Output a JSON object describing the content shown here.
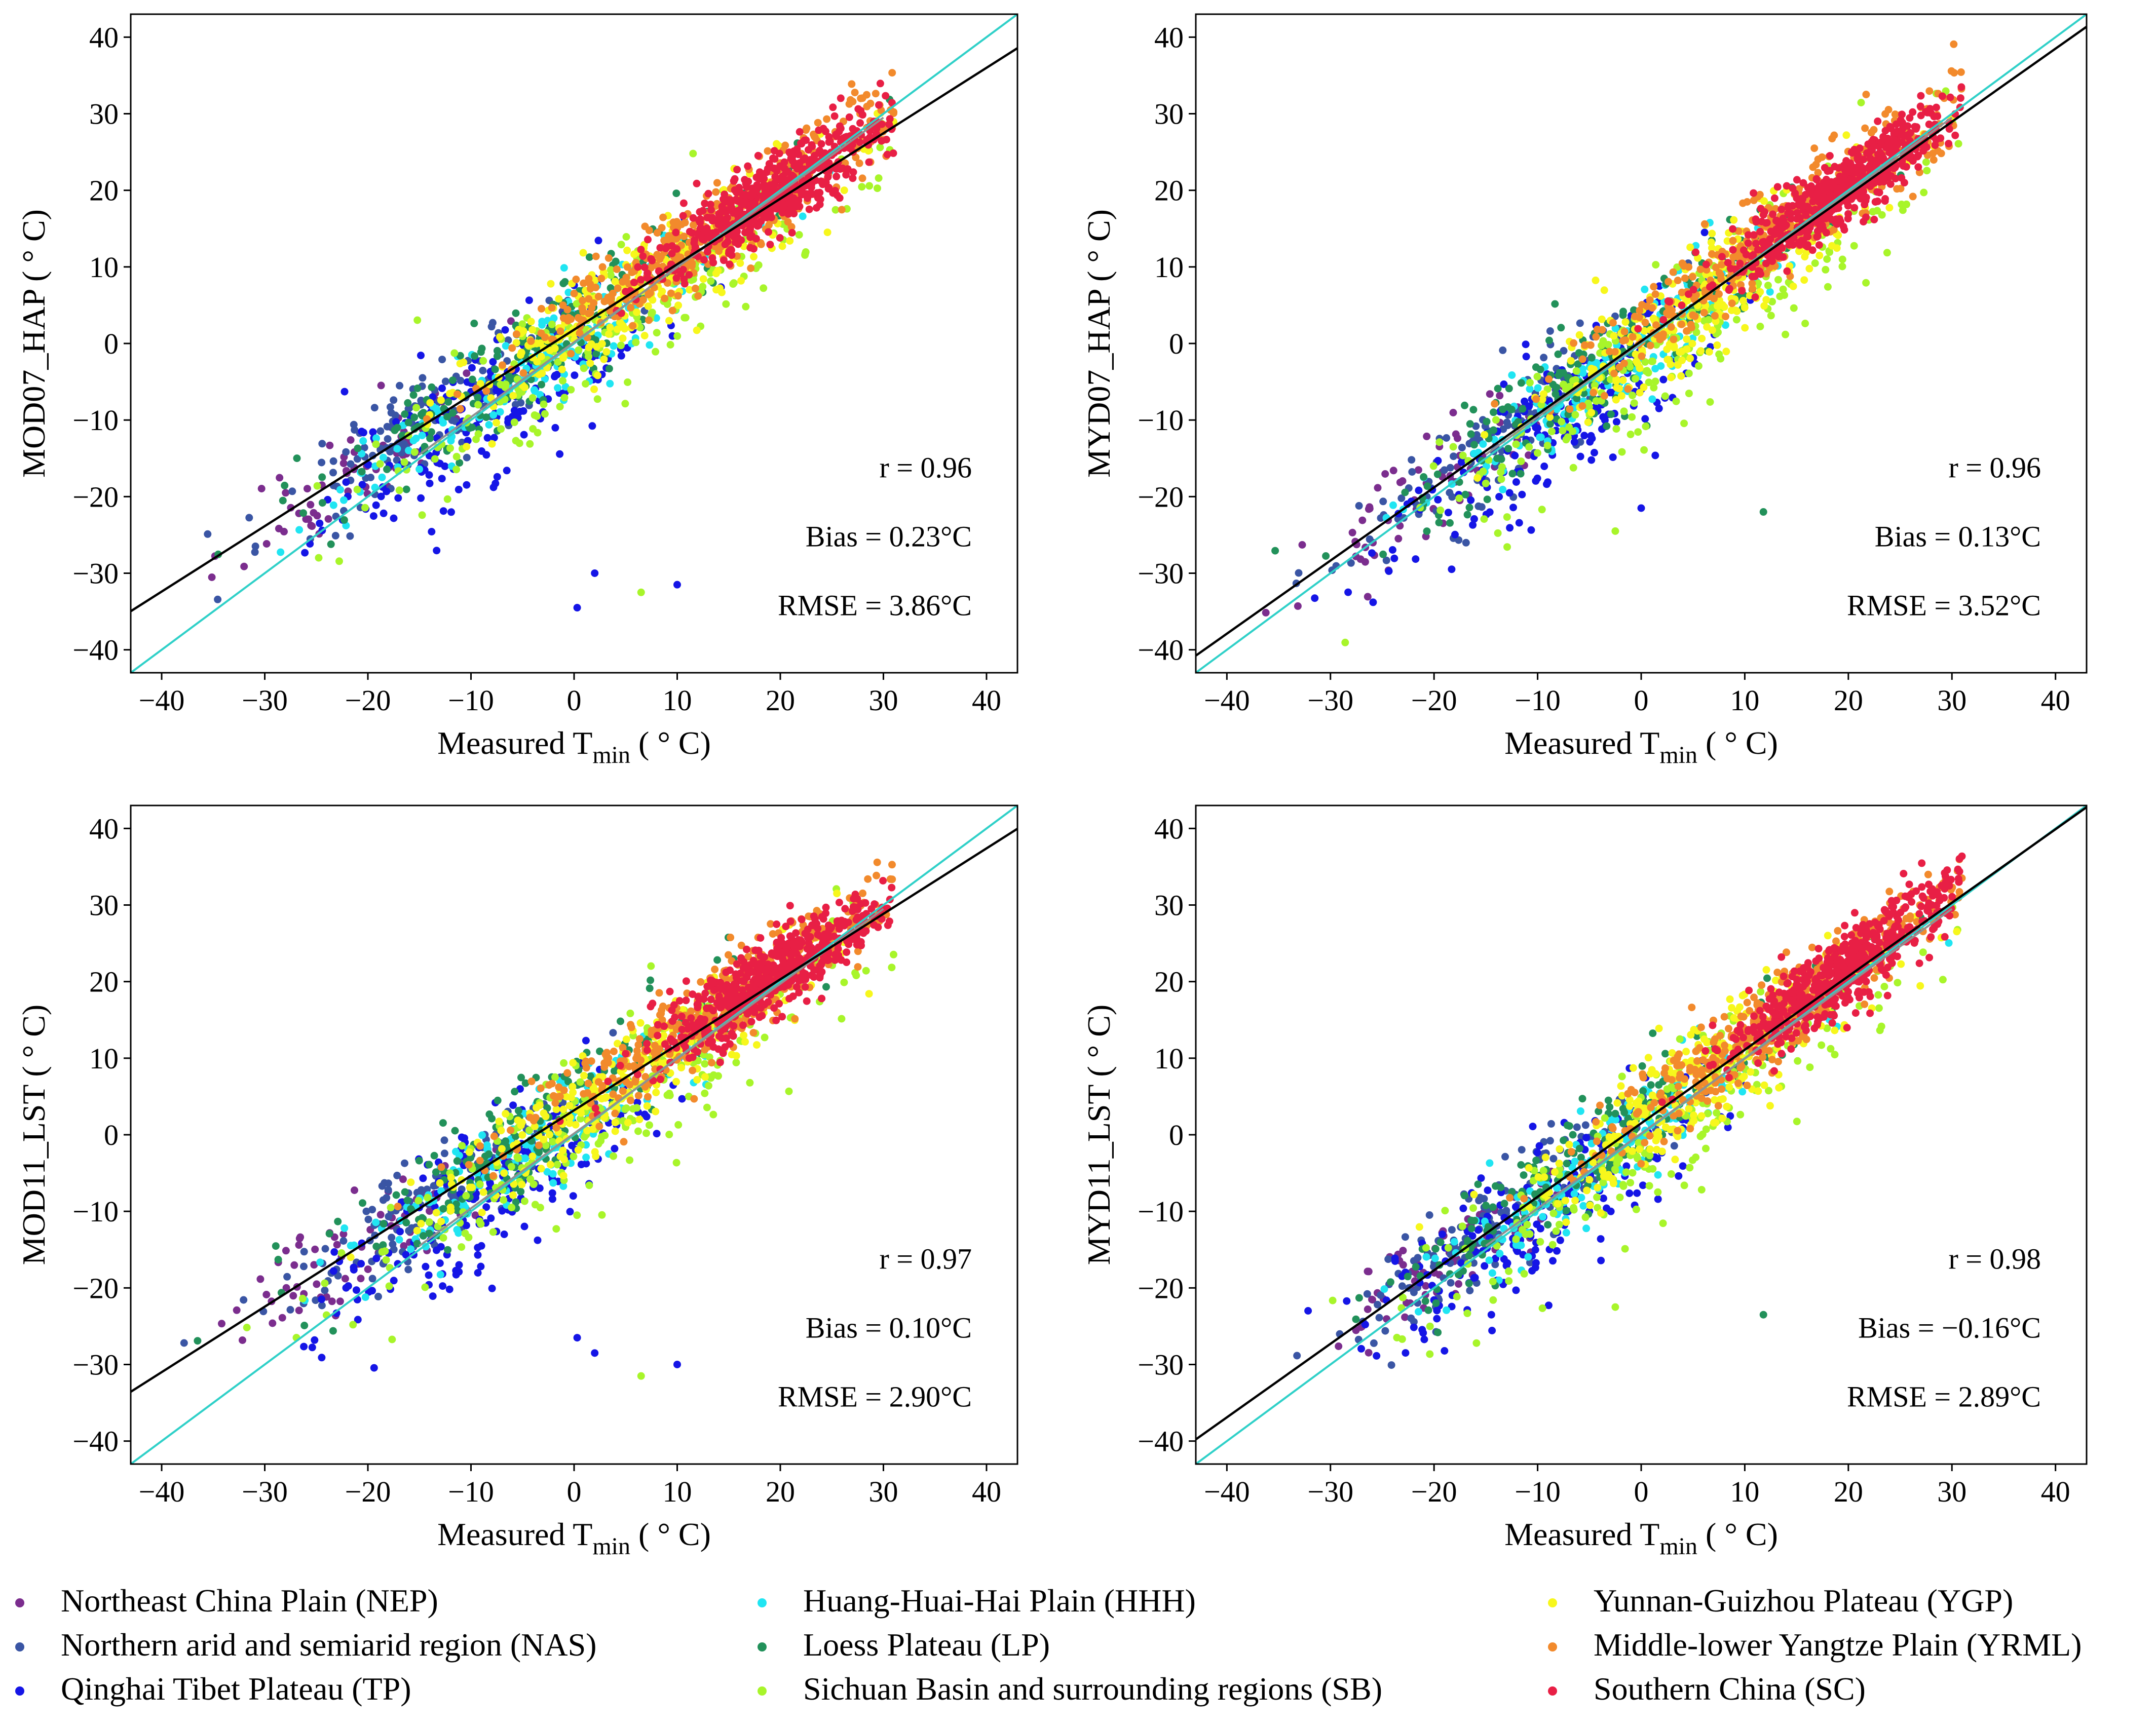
{
  "colors": {
    "NEP": "#7b2d8e",
    "NAS": "#3a55a4",
    "TP": "#1515e6",
    "HHH": "#20e5f2",
    "LP": "#22915a",
    "SB": "#a8f52a",
    "YGP": "#f7f71c",
    "YRML": "#f28a2c",
    "SC": "#e81f45",
    "one_to_one": "#2fd0c8",
    "fit": "#000000",
    "gray_line": "#909090"
  },
  "legend": [
    {
      "key": "NEP",
      "label": "Northeast China Plain (NEP)"
    },
    {
      "key": "NAS",
      "label": "Northern arid and semiarid region (NAS)"
    },
    {
      "key": "TP",
      "label": "Qinghai Tibet Plateau (TP)"
    },
    {
      "key": "HHH",
      "label": "Huang-Huai-Hai Plain (HHH)"
    },
    {
      "key": "LP",
      "label": "Loess Plateau (LP)"
    },
    {
      "key": "SB",
      "label": "Sichuan Basin and surrounding regions (SB)"
    },
    {
      "key": "YGP",
      "label": "Yunnan-Guizhou Plateau (YGP)"
    },
    {
      "key": "YRML",
      "label": "Middle-lower Yangtze Plain (YRML)"
    },
    {
      "key": "SC",
      "label": "Southern China (SC)"
    }
  ],
  "chart_data": [
    {
      "type": "scatter",
      "ylabel": "MOD07_HAP ( ° C)",
      "xlabel_main": "Measured T",
      "xlabel_sub": "min",
      "xlabel_tail": " ( ° C)",
      "xlim": [
        -43,
        43
      ],
      "ylim": [
        -43,
        43
      ],
      "xticks": [
        -40,
        -30,
        -20,
        -10,
        0,
        10,
        20,
        30,
        40
      ],
      "yticks": [
        -40,
        -30,
        -20,
        -10,
        0,
        10,
        20,
        30,
        40
      ],
      "r": "r = 0.96",
      "bias": "Bias = 0.23°C",
      "rmse": "RMSE = 3.86°C",
      "fit": {
        "slope": 0.855,
        "intercept": 1.8
      },
      "outliers": [
        {
          "x": 0.3,
          "y": -34.5,
          "g": "TP"
        },
        {
          "x": 2,
          "y": -30,
          "g": "TP"
        },
        {
          "x": 10,
          "y": -31.5,
          "g": "TP"
        },
        {
          "x": 6.5,
          "y": -32.5,
          "g": "SB"
        }
      ],
      "seed": 11
    },
    {
      "type": "scatter",
      "ylabel": "MYD07_HAP ( ° C)",
      "xlabel_main": "Measured T",
      "xlabel_sub": "min",
      "xlabel_tail": " ( ° C)",
      "xlim": [
        -43,
        43
      ],
      "ylim": [
        -43,
        43
      ],
      "xticks": [
        -40,
        -30,
        -20,
        -10,
        0,
        10,
        20,
        30,
        40
      ],
      "yticks": [
        -40,
        -30,
        -20,
        -10,
        0,
        10,
        20,
        30,
        40
      ],
      "r": "r = 0.96",
      "bias": "Bias = 0.13°C",
      "rmse": "RMSE = 3.52°C",
      "fit": {
        "slope": 0.955,
        "intercept": 0.3
      },
      "outliers": [
        {
          "x": 11.8,
          "y": -22,
          "g": "LP"
        },
        {
          "x": -2.5,
          "y": -24.5,
          "g": "SB"
        },
        {
          "x": 0,
          "y": -21.5,
          "g": "TP"
        }
      ],
      "seed": 23
    },
    {
      "type": "scatter",
      "ylabel": "MOD11_LST ( ° C)",
      "xlabel_main": "Measured T",
      "xlabel_sub": "min",
      "xlabel_tail": " ( ° C)",
      "xlim": [
        -43,
        43
      ],
      "ylim": [
        -43,
        43
      ],
      "xticks": [
        -40,
        -30,
        -20,
        -10,
        0,
        10,
        20,
        30,
        40
      ],
      "yticks": [
        -40,
        -30,
        -20,
        -10,
        0,
        10,
        20,
        30,
        40
      ],
      "r": "r = 0.97",
      "bias": "Bias = 0.10°C",
      "rmse": "RMSE = 2.90°C",
      "fit": {
        "slope": 0.855,
        "intercept": 3.2
      },
      "outliers": [
        {
          "x": 0.3,
          "y": -26.5,
          "g": "TP"
        },
        {
          "x": 2,
          "y": -28.5,
          "g": "TP"
        },
        {
          "x": 10,
          "y": -30,
          "g": "TP"
        },
        {
          "x": 6.5,
          "y": -31.5,
          "g": "SB"
        }
      ],
      "seed": 37
    },
    {
      "type": "scatter",
      "ylabel": "MYD11_LST ( ° C)",
      "xlabel_main": "Measured T",
      "xlabel_sub": "min",
      "xlabel_tail": " ( ° C)",
      "xlim": [
        -43,
        43
      ],
      "ylim": [
        -43,
        43
      ],
      "xticks": [
        -40,
        -30,
        -20,
        -10,
        0,
        10,
        20,
        30,
        40
      ],
      "yticks": [
        -40,
        -30,
        -20,
        -10,
        0,
        10,
        20,
        30,
        40
      ],
      "r": "r = 0.98",
      "bias": "Bias = −0.16°C",
      "rmse": "RMSE = 2.89°C",
      "fit": {
        "slope": 0.96,
        "intercept": 1.5
      },
      "outliers": [
        {
          "x": 11.8,
          "y": -23.5,
          "g": "LP"
        },
        {
          "x": -2.5,
          "y": -22.5,
          "g": "SB"
        }
      ],
      "seed": 51
    }
  ]
}
